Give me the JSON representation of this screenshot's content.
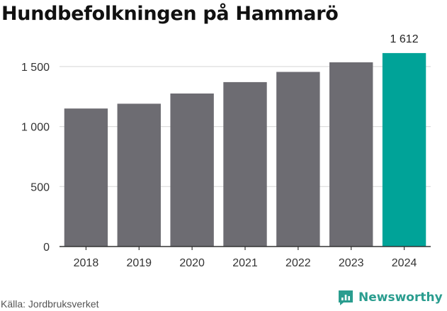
{
  "title": "Hundbefolkningen på Hammarö",
  "source": "Källa: Jordbruksverket",
  "brand": {
    "name": "Newsworthy",
    "icon": "newsworthy-logo-icon",
    "color": "#2a9d8f"
  },
  "chart_data": {
    "type": "bar",
    "title": "Hundbefolkningen på Hammarö",
    "xlabel": "",
    "ylabel": "",
    "categories": [
      "2018",
      "2019",
      "2020",
      "2021",
      "2022",
      "2023",
      "2024"
    ],
    "values": [
      1150,
      1190,
      1275,
      1370,
      1455,
      1535,
      1612
    ],
    "ylim": [
      0,
      1700
    ],
    "yticks": [
      0,
      500,
      1000,
      1500
    ],
    "ytick_labels": [
      "0",
      "500",
      "1 000",
      "1 500"
    ],
    "grid": true,
    "legend": "none",
    "annotations": [
      {
        "category": "2024",
        "text": "1 612"
      }
    ],
    "colors": {
      "default": "#6d6c72",
      "highlight": "#00a398",
      "highlight_category": "2024",
      "grid": "#dddddd",
      "axis": "#333333"
    }
  }
}
